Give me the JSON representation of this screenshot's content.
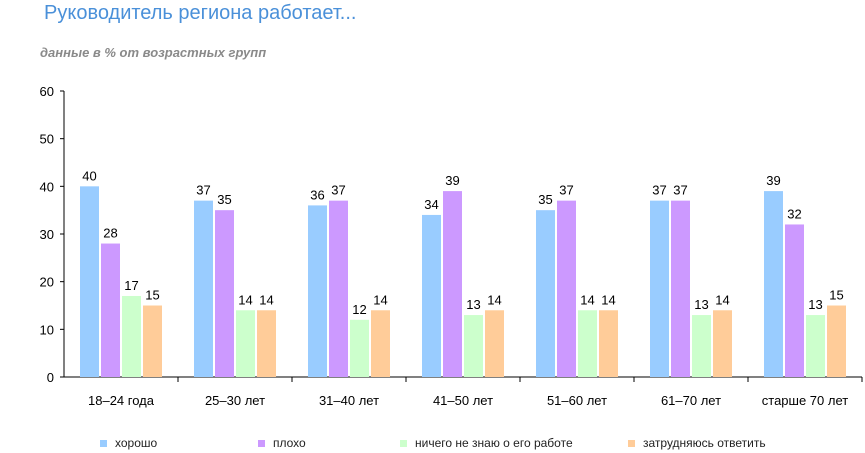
{
  "chart_data": {
    "type": "bar",
    "title": "Руководитель региона работает...",
    "subtitle": "данные в % от возрастных групп",
    "categories": [
      "18–24 года",
      "25–30 лет",
      "31–40 лет",
      "41–50 лет",
      "51–60 лет",
      "61–70 лет",
      "старше 70 лет"
    ],
    "series": [
      {
        "name": "хорошо",
        "color": "#99ccff",
        "values": [
          40,
          37,
          36,
          34,
          35,
          37,
          39
        ]
      },
      {
        "name": "плохо",
        "color": "#cc99ff",
        "values": [
          28,
          35,
          37,
          39,
          37,
          37,
          32
        ]
      },
      {
        "name": "ничего не знаю о его работе",
        "color": "#ccffcc",
        "values": [
          17,
          14,
          12,
          13,
          14,
          13,
          13
        ]
      },
      {
        "name": "затрудняюсь ответить",
        "color": "#ffcc99",
        "values": [
          15,
          14,
          14,
          14,
          14,
          14,
          15
        ]
      }
    ],
    "ylim": [
      0,
      60
    ],
    "yticks": [
      0,
      10,
      20,
      30,
      40,
      50,
      60
    ],
    "grid": false,
    "legend_position": "bottom"
  }
}
